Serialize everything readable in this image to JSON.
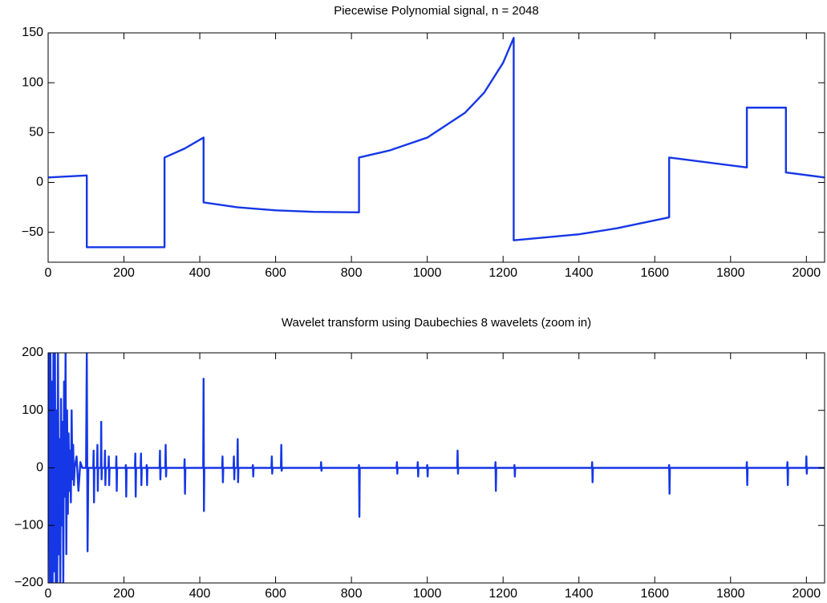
{
  "chart_data": [
    {
      "type": "line",
      "title": "Piecewise Polynomial signal, n = 2048",
      "color": "#1537e6",
      "x": [
        0,
        50,
        102,
        102,
        200,
        307,
        307,
        360,
        410,
        410,
        500,
        600,
        700,
        820,
        820,
        900,
        1000,
        1100,
        1150,
        1200,
        1228,
        1228,
        1400,
        1500,
        1600,
        1638,
        1638,
        1843,
        1843,
        1946,
        1946,
        2048
      ],
      "values": [
        5,
        6,
        7,
        -65,
        -65,
        -65,
        25,
        34,
        45,
        -20,
        -25,
        -28,
        -29.5,
        -30,
        25,
        32,
        45,
        70,
        90,
        120,
        145,
        -58,
        -52,
        -46,
        -38,
        -35,
        25,
        15,
        75,
        75,
        10,
        5
      ],
      "xlim": [
        0,
        2048
      ],
      "ylim": [
        -80,
        150
      ],
      "xticks": [
        0,
        200,
        400,
        600,
        800,
        1000,
        1200,
        1400,
        1600,
        1800,
        2000
      ],
      "yticks": [
        {
          "value": -50,
          "label": "−50"
        },
        0,
        50,
        100,
        150
      ]
    },
    {
      "type": "line",
      "title": "Wavelet transform using Daubechies 8 wavelets (zoom in)",
      "color": "#1537e6",
      "x": [
        0,
        2,
        4,
        6,
        8,
        10,
        12,
        14,
        16,
        18,
        20,
        22,
        24,
        26,
        28,
        30,
        32,
        34,
        36,
        38,
        40,
        42,
        44,
        46,
        48,
        50,
        52,
        54,
        56,
        58,
        60,
        62,
        64,
        66,
        68,
        70,
        75,
        80,
        85,
        90,
        100,
        102,
        104,
        106,
        119,
        120,
        121,
        122,
        129,
        130,
        131,
        132,
        139,
        140,
        141,
        142,
        149,
        150,
        151,
        152,
        159,
        160,
        161,
        162,
        179,
        180,
        181,
        182,
        204,
        205,
        206,
        207,
        229,
        230,
        231,
        232,
        244,
        245,
        246,
        247,
        259,
        260,
        261,
        262,
        294,
        295,
        296,
        297,
        309,
        310,
        311,
        312,
        359,
        360,
        361,
        362,
        409,
        410,
        411,
        412,
        459,
        460,
        461,
        462,
        489,
        490,
        491,
        492,
        499,
        500,
        501,
        502,
        539,
        540,
        541,
        542,
        589,
        590,
        591,
        592,
        614,
        615,
        616,
        617,
        719,
        720,
        721,
        722,
        819,
        820,
        821,
        822,
        919,
        920,
        921,
        922,
        974,
        975,
        976,
        977,
        999,
        1000,
        1001,
        1002,
        1079,
        1080,
        1081,
        1082,
        1179,
        1180,
        1181,
        1182,
        1229,
        1230,
        1231,
        1232,
        1434,
        1435,
        1436,
        1437,
        1637,
        1638,
        1639,
        1640,
        1842,
        1843,
        1844,
        1845,
        1949,
        1950,
        1951,
        1952,
        1999,
        2000,
        2001,
        2002,
        2048
      ],
      "values": [
        0,
        200,
        -200,
        200,
        -200,
        150,
        -200,
        200,
        -180,
        200,
        -200,
        100,
        -200,
        200,
        -150,
        50,
        -200,
        120,
        -100,
        80,
        -200,
        150,
        -50,
        200,
        -150,
        100,
        -80,
        60,
        -40,
        30,
        -60,
        100,
        -20,
        40,
        -30,
        0,
        20,
        -40,
        10,
        0,
        0,
        200,
        -145,
        0,
        0,
        30,
        -60,
        0,
        0,
        40,
        -40,
        0,
        0,
        80,
        -20,
        0,
        0,
        30,
        -30,
        0,
        0,
        20,
        -30,
        0,
        0,
        20,
        -40,
        0,
        0,
        5,
        -50,
        0,
        0,
        25,
        -50,
        0,
        0,
        25,
        -30,
        0,
        0,
        5,
        -30,
        0,
        0,
        30,
        -20,
        0,
        0,
        40,
        -15,
        0,
        0,
        15,
        -45,
        0,
        0,
        155,
        -75,
        0,
        0,
        20,
        -25,
        0,
        0,
        20,
        -20,
        0,
        0,
        50,
        -25,
        0,
        0,
        5,
        -15,
        0,
        0,
        20,
        -10,
        0,
        0,
        40,
        -5,
        0,
        0,
        10,
        -5,
        0,
        0,
        5,
        -85,
        0,
        0,
        10,
        -10,
        0,
        0,
        10,
        -15,
        0,
        0,
        5,
        -15,
        0,
        0,
        30,
        -10,
        0,
        0,
        10,
        -40,
        0,
        0,
        5,
        -15,
        0,
        0,
        10,
        -25,
        0,
        0,
        5,
        -45,
        0,
        0,
        10,
        -30,
        0,
        0,
        10,
        -30,
        0,
        0,
        20,
        -10,
        0,
        0
      ],
      "xlim": [
        0,
        2048
      ],
      "ylim": [
        -200,
        200
      ],
      "xticks": [
        0,
        200,
        400,
        600,
        800,
        1000,
        1200,
        1400,
        1600,
        1800,
        2000
      ],
      "yticks": [
        {
          "value": -200,
          "label": "−200"
        },
        {
          "value": -100,
          "label": "−100"
        },
        0,
        100,
        200
      ]
    }
  ]
}
